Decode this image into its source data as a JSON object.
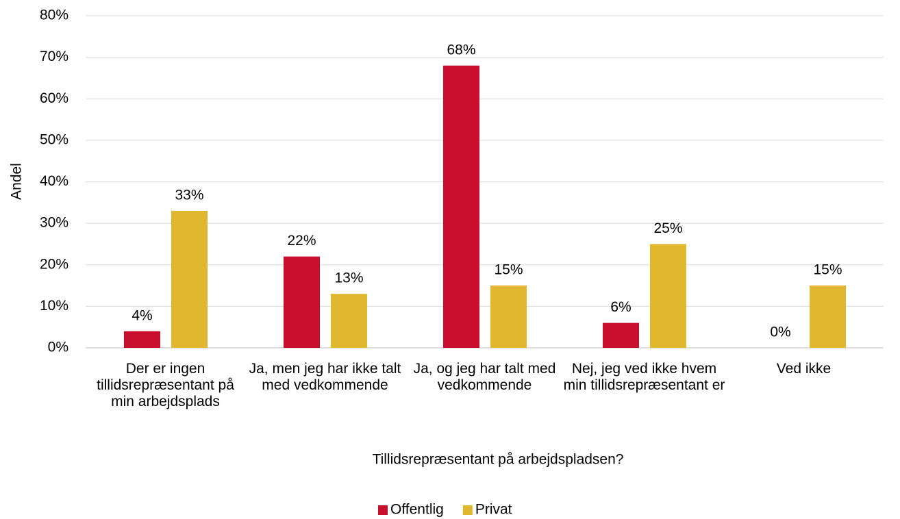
{
  "chart_data": {
    "type": "bar",
    "x_label": "Tillidsrepræsentant på arbejdspladsen?",
    "y_label": "Andel",
    "categories": [
      "Der er ingen tillidsrepræsentant på min arbejdsplads",
      "Ja, men jeg har ikke talt med vedkommende",
      "Ja, og jeg har talt med vedkommende",
      "Nej, jeg ved ikke hvem min tillidsrepræsentant er",
      "Ved ikke"
    ],
    "series": [
      {
        "name": "Offentlig",
        "color": "#c8102e",
        "values": [
          4,
          22,
          68,
          6,
          0
        ],
        "value_labels": [
          "4%",
          "22%",
          "68%",
          "6%",
          "0%"
        ]
      },
      {
        "name": "Privat",
        "color": "#e0b830",
        "values": [
          33,
          13,
          15,
          25,
          15
        ],
        "value_labels": [
          "33%",
          "13%",
          "15%",
          "25%",
          "15%"
        ]
      }
    ],
    "ylim": [
      0,
      80
    ],
    "yticks": [
      {
        "value": 0,
        "label": "0%"
      },
      {
        "value": 10,
        "label": "10%"
      },
      {
        "value": 20,
        "label": "20%"
      },
      {
        "value": 30,
        "label": "30%"
      },
      {
        "value": 40,
        "label": "40%"
      },
      {
        "value": 50,
        "label": "50%"
      },
      {
        "value": 60,
        "label": "60%"
      },
      {
        "value": 70,
        "label": "70%"
      },
      {
        "value": 80,
        "label": "80%"
      }
    ],
    "grid": true,
    "legend": "bottom"
  }
}
